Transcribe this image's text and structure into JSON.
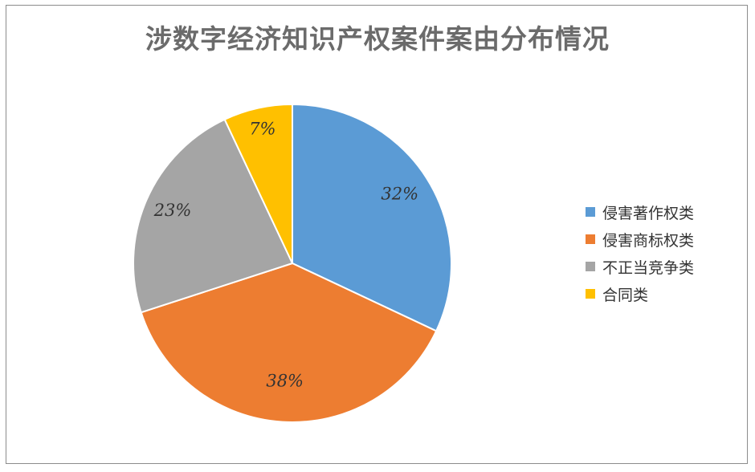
{
  "chart_data": {
    "type": "pie",
    "title": "涉数字经济知识产权案件案由分布情况",
    "categories": [
      "侵害著作权类",
      "侵害商标权类",
      "不正当竞争类",
      "合同类"
    ],
    "values": [
      32,
      38,
      23,
      7
    ],
    "labels": [
      "32%",
      "38%",
      "23%",
      "7%"
    ],
    "colors": [
      "#5B9BD5",
      "#ED7D31",
      "#A5A5A5",
      "#FFC000"
    ],
    "legend_position": "right",
    "start_angle": "top, clockwise"
  }
}
